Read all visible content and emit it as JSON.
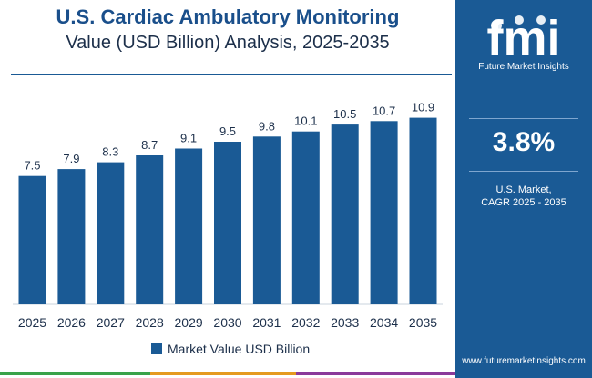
{
  "header": {
    "title_line1": "U.S. Cardiac Ambulatory Monitoring",
    "title_line2": "Value (USD Billion) Analysis, 2025-2035"
  },
  "chart_data": {
    "type": "bar",
    "categories": [
      "2025",
      "2026",
      "2027",
      "2028",
      "2029",
      "2030",
      "2031",
      "2032",
      "2033",
      "2034",
      "2035"
    ],
    "series": [
      {
        "name": "Market Value USD Billion",
        "values": [
          7.5,
          7.9,
          8.3,
          8.7,
          9.1,
          9.5,
          9.8,
          10.1,
          10.5,
          10.7,
          10.9
        ],
        "color": "#1a5a95"
      }
    ],
    "ylim": [
      0,
      13
    ],
    "grid": false,
    "legend": "bottom-center",
    "data_labels": true
  },
  "sidebar": {
    "logo_text": "fmi",
    "logo_caption": "Future Market Insights",
    "cagr_value": "3.8%",
    "cagr_label_line1": "U.S. Market,",
    "cagr_label_line2": "CAGR 2025 - 2035",
    "url": "www.futuremarketinsights.com"
  },
  "colors": {
    "bar": "#1a5a95",
    "sidebar": "#1a5a95",
    "title": "#1a4f8b",
    "footer": [
      "#3aa24a",
      "#e59a1f",
      "#8b3a9a",
      "#1a5a95"
    ]
  }
}
